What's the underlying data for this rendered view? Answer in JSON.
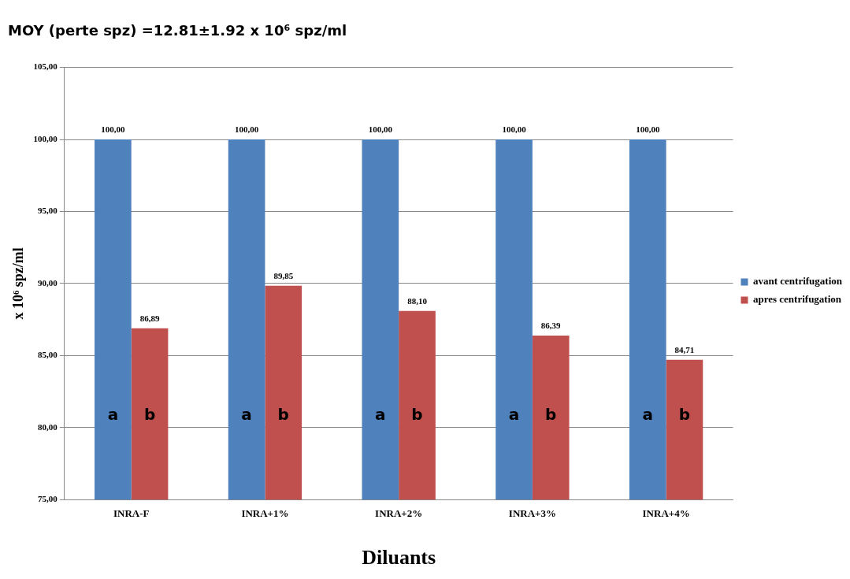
{
  "chart_data": {
    "type": "bar",
    "title": "MOY (perte spz) =12.81±1.92 x 10⁶ spz/ml",
    "xlabel": "Diluants",
    "ylabel": "x 10⁶ spz/ml",
    "categories": [
      "INRA-F",
      "INRA+1%",
      "INRA+2%",
      "INRA+3%",
      "INRA+4%"
    ],
    "series": [
      {
        "name": "avant centrifugation",
        "color": "#4f81bd",
        "values": [
          100,
          100,
          100,
          100,
          100
        ],
        "value_labels": [
          "100,00",
          "100,00",
          "100,00",
          "100,00",
          "100,00"
        ]
      },
      {
        "name": "apres centrifugation",
        "color": "#c0504d",
        "values": [
          86.89,
          89.85,
          88.1,
          86.39,
          84.71
        ],
        "value_labels": [
          "86,89",
          "89,85",
          "88,10",
          "86,39",
          "84,71"
        ]
      }
    ],
    "ylim": [
      75,
      105
    ],
    "yticks": [
      {
        "value": 75,
        "label": "75,00"
      },
      {
        "value": 80,
        "label": "80,00"
      },
      {
        "value": 85,
        "label": "85,00"
      },
      {
        "value": 90,
        "label": "90,00"
      },
      {
        "value": 95,
        "label": "95,00"
      },
      {
        "value": 100,
        "label": "100,00"
      },
      {
        "value": 105,
        "label": "105,00"
      }
    ],
    "grid": "y",
    "legend": "right",
    "annotations": [
      {
        "text": "a",
        "x": "INRA-F",
        "y": 80.8
      },
      {
        "text": "b",
        "x": "INRA-F",
        "y": 80.8
      },
      {
        "text": "a",
        "x": "INRA+1%",
        "y": 80.8
      },
      {
        "text": "b",
        "x": "INRA+1%",
        "y": 80.8
      },
      {
        "text": "a",
        "x": "INRA+2%",
        "y": 80.8
      },
      {
        "text": "b",
        "x": "INRA+2%",
        "y": 80.8
      },
      {
        "text": "a",
        "x": "INRA+3%",
        "y": 80.8
      },
      {
        "text": "b",
        "x": "INRA+3%",
        "y": 80.8
      },
      {
        "text": "a",
        "x": "INRA+4%",
        "y": 80.8
      },
      {
        "text": "b",
        "x": "INRA+4%",
        "y": 80.8
      }
    ]
  }
}
